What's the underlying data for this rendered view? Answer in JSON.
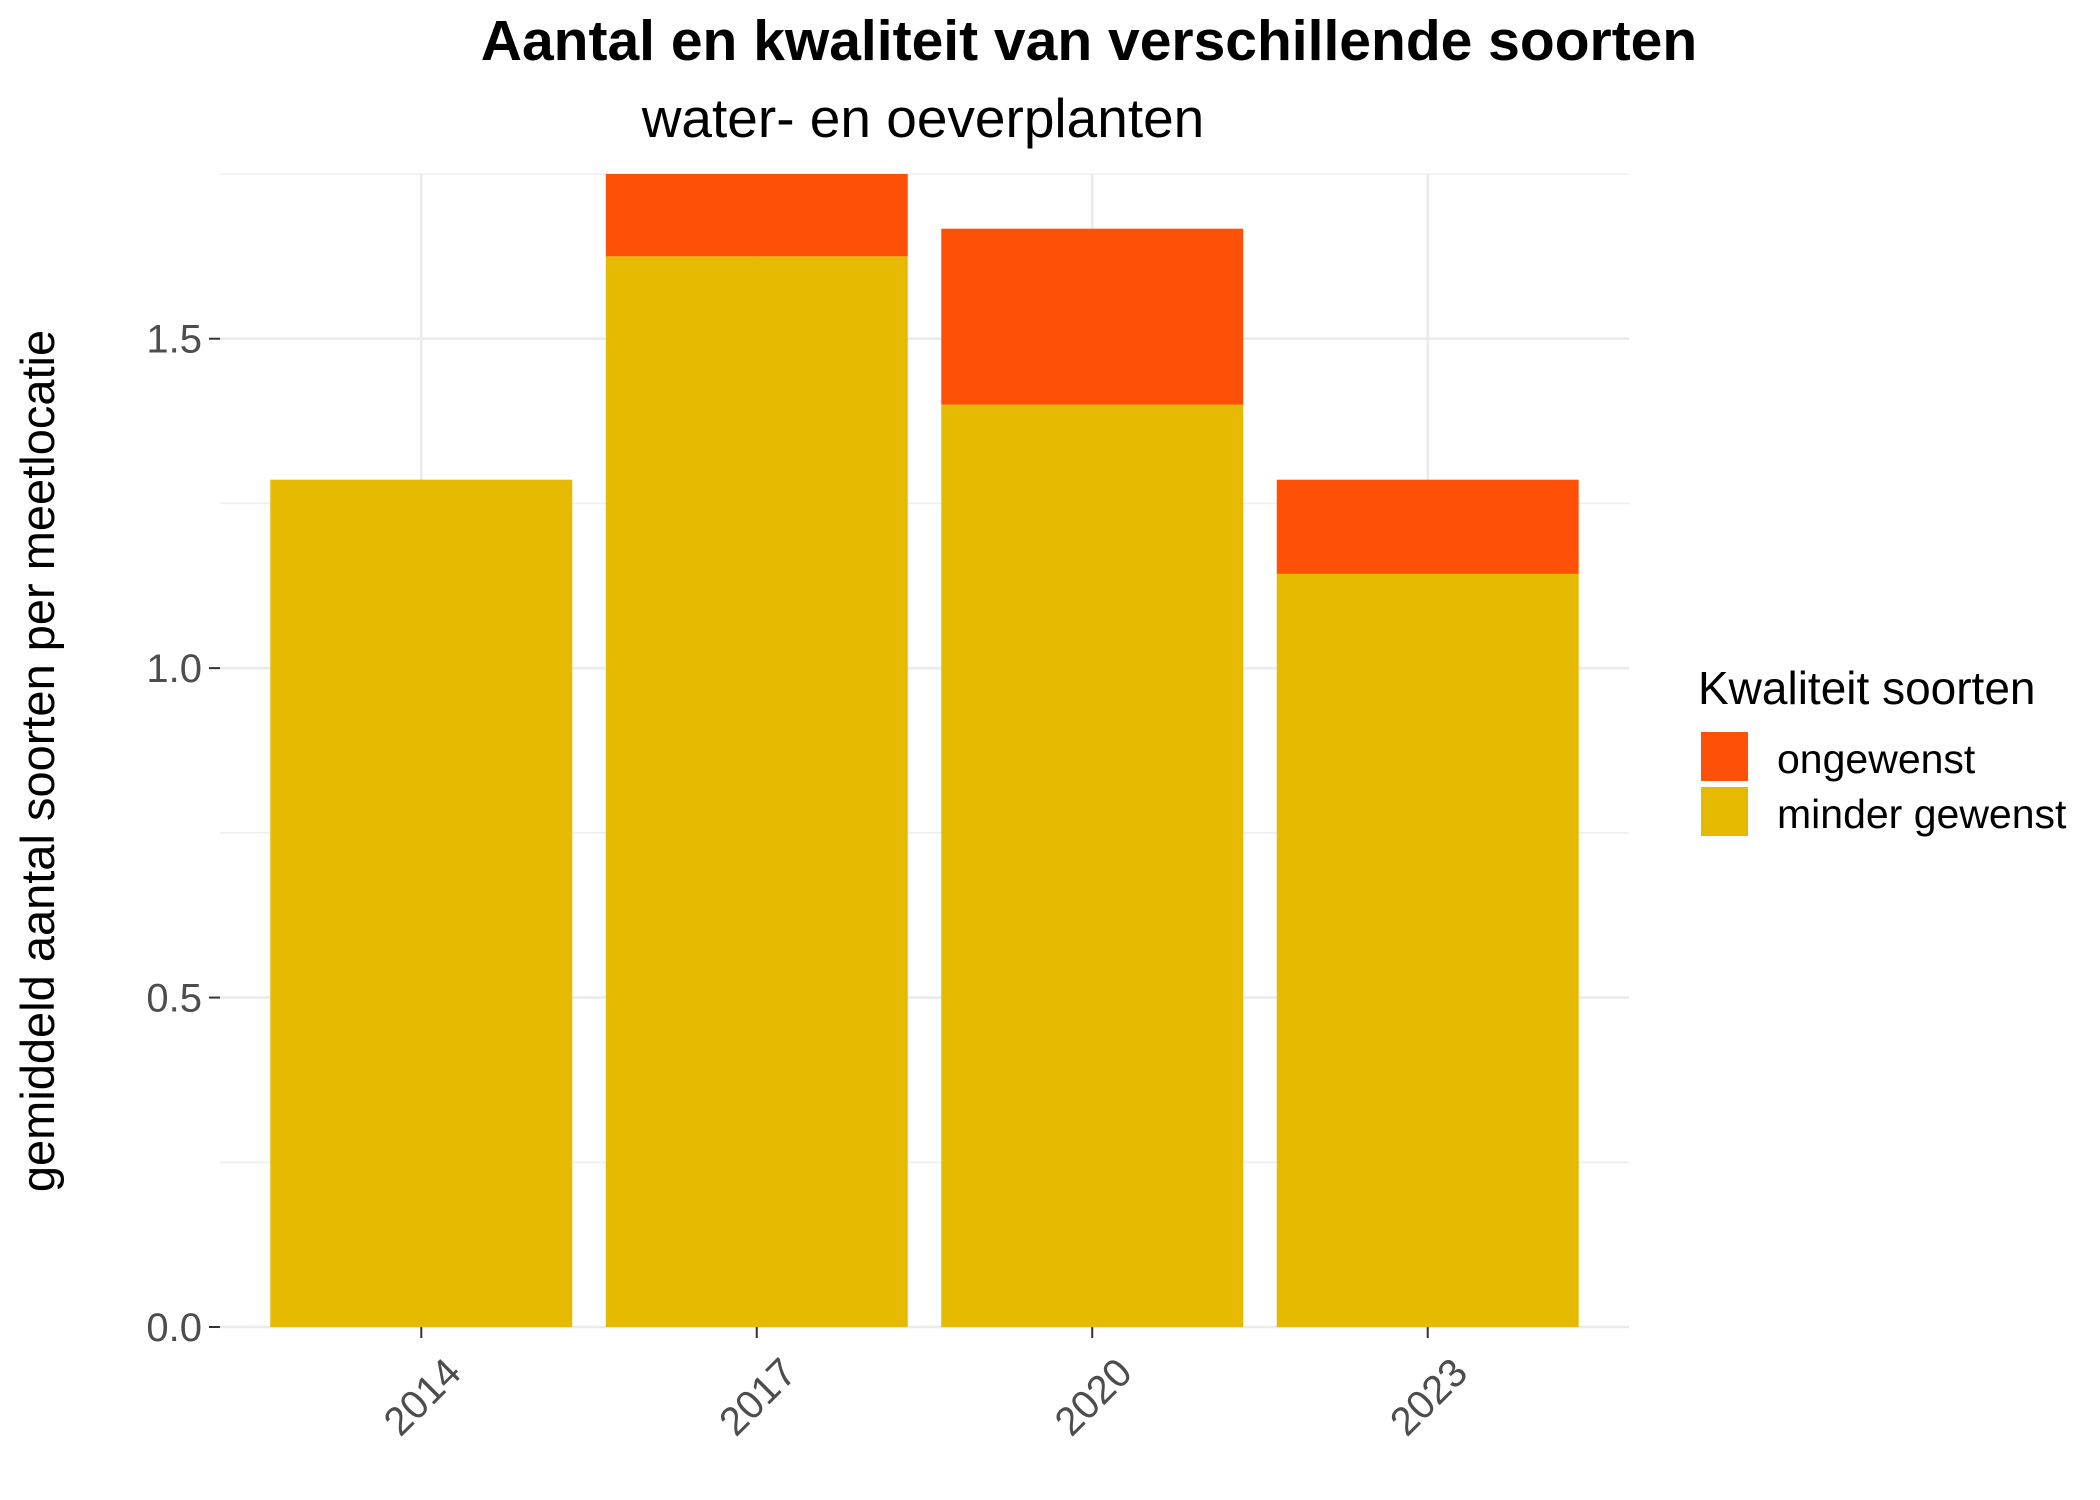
{
  "chart_data": {
    "type": "bar",
    "stacked": true,
    "title": "Aantal en kwaliteit van verschillende soorten",
    "subtitle": "water- en oeverplanten",
    "xlabel": "",
    "ylabel": "gemiddeld aantal soorten per meetlocatie",
    "categories": [
      "2014",
      "2017",
      "2020",
      "2023"
    ],
    "series": [
      {
        "name": "minder gewenst",
        "color": "#E6BA00",
        "values": [
          1.286,
          1.625,
          1.4,
          1.143
        ]
      },
      {
        "name": "ongewenst",
        "color": "#FF5008",
        "values": [
          0,
          0.125,
          0.267,
          0.143
        ]
      }
    ],
    "ylim": [
      0,
      1.75
    ],
    "yticks": [
      "0.0",
      "0.5",
      "1.0",
      "1.5"
    ],
    "grid": true,
    "legend": {
      "title": "Kwaliteit soorten",
      "position": "right"
    }
  }
}
